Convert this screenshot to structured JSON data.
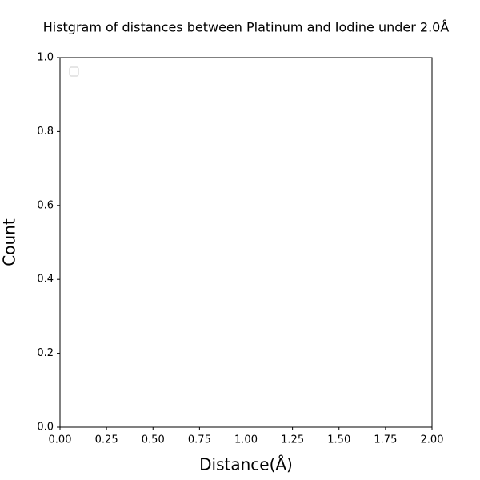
{
  "chart_data": {
    "type": "histogram",
    "title": "Histgram of distances between Platinum and Iodine under 2.0Å",
    "xlabel": "Distance(Å)",
    "ylabel": "Count",
    "xlim": [
      0,
      2
    ],
    "ylim": [
      0,
      1
    ],
    "xticks": [
      {
        "value": 0,
        "label": "0.00"
      },
      {
        "value": 0.25,
        "label": "0.25"
      },
      {
        "value": 0.5,
        "label": "0.50"
      },
      {
        "value": 0.75,
        "label": "0.75"
      },
      {
        "value": 1,
        "label": "1.00"
      },
      {
        "value": 1.25,
        "label": "1.25"
      },
      {
        "value": 1.5,
        "label": "1.50"
      },
      {
        "value": 1.75,
        "label": "1.75"
      },
      {
        "value": 2,
        "label": "2.00"
      }
    ],
    "yticks": [
      {
        "value": 0,
        "label": "0.0"
      },
      0.2,
      0.4,
      0.6,
      0.8,
      {
        "value": 1,
        "label": "1.0"
      }
    ],
    "legend": "upper left"
  }
}
